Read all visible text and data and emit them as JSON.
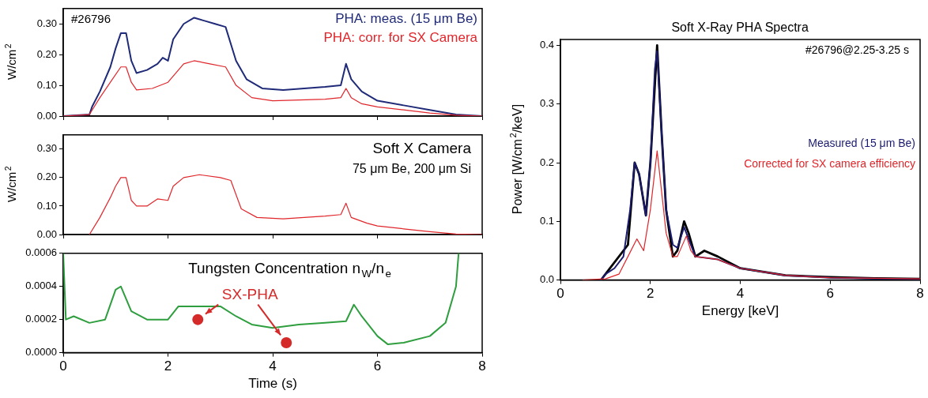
{
  "chart_data": [
    {
      "type": "line",
      "ylabel": "W/cm$^{2}$",
      "xlim": [
        0,
        8
      ],
      "ylim": [
        0,
        0.35
      ],
      "xticks": [
        0,
        2,
        4,
        6,
        8
      ],
      "yticks": [
        {
          "value": 0,
          "label": "0.00"
        },
        {
          "value": 0.1,
          "label": "0.10"
        },
        {
          "value": 0.2,
          "label": "0.20"
        },
        {
          "value": 0.3,
          "label": "0.30"
        }
      ],
      "tick_labels": "y",
      "grid": false,
      "legend": "top right",
      "annotations": [
        "#26796"
      ],
      "series": [
        {
          "name": "PHA: meas. (15 μm Be)",
          "color": "#1f2a78",
          "x": [
            0,
            0.5,
            0.55,
            0.7,
            0.9,
            1.0,
            1.1,
            1.2,
            1.3,
            1.4,
            1.6,
            1.8,
            1.9,
            2.0,
            2.1,
            2.3,
            2.5,
            2.7,
            2.9,
            3.1,
            3.3,
            3.5,
            3.8,
            4.2,
            4.6,
            5.0,
            5.3,
            5.4,
            5.5,
            5.7,
            6.0,
            6.5,
            7.0,
            7.5,
            8
          ],
          "values": [
            0,
            0.005,
            0.03,
            0.08,
            0.16,
            0.22,
            0.27,
            0.27,
            0.18,
            0.14,
            0.15,
            0.17,
            0.19,
            0.18,
            0.25,
            0.3,
            0.32,
            0.31,
            0.3,
            0.29,
            0.18,
            0.12,
            0.09,
            0.085,
            0.09,
            0.095,
            0.1,
            0.17,
            0.12,
            0.08,
            0.05,
            0.035,
            0.02,
            0.005,
            0
          ]
        },
        {
          "name": "PHA: corr. for SX Camera",
          "color": "#e0262b",
          "x": [
            0,
            0.5,
            0.7,
            0.9,
            1.1,
            1.2,
            1.3,
            1.4,
            1.7,
            2.0,
            2.3,
            2.5,
            2.8,
            3.1,
            3.3,
            3.6,
            4.0,
            5.0,
            5.3,
            5.4,
            5.5,
            5.7,
            6.0,
            6.5,
            7.0,
            7.5,
            8
          ],
          "values": [
            0,
            0.005,
            0.06,
            0.11,
            0.16,
            0.16,
            0.11,
            0.085,
            0.09,
            0.11,
            0.17,
            0.18,
            0.17,
            0.16,
            0.1,
            0.06,
            0.05,
            0.055,
            0.06,
            0.09,
            0.06,
            0.04,
            0.03,
            0.02,
            0.01,
            0.003,
            0
          ]
        }
      ]
    },
    {
      "type": "line",
      "ylabel": "W/cm$^{2}$",
      "xlim": [
        0,
        8
      ],
      "ylim": [
        0,
        0.35
      ],
      "xticks": [
        0,
        2,
        4,
        6,
        8
      ],
      "yticks": [
        {
          "value": 0,
          "label": "0.00"
        },
        {
          "value": 0.1,
          "label": "0.10"
        },
        {
          "value": 0.2,
          "label": "0.20"
        },
        {
          "value": 0.3,
          "label": "0.30"
        }
      ],
      "tick_labels": "y",
      "grid": false,
      "annotations": [
        "Soft X Camera",
        "75 μm Be, 200 μm Si"
      ],
      "series": [
        {
          "color": "#e0262b",
          "x": [
            0.5,
            0.7,
            0.9,
            1.0,
            1.1,
            1.2,
            1.3,
            1.4,
            1.6,
            1.8,
            2.0,
            2.1,
            2.3,
            2.6,
            3.0,
            3.2,
            3.4,
            3.7,
            4.2,
            5.0,
            5.3,
            5.4,
            5.5,
            5.8,
            6.0,
            6.5,
            7.0,
            7.5,
            8
          ],
          "values": [
            0,
            0.06,
            0.13,
            0.17,
            0.2,
            0.2,
            0.12,
            0.1,
            0.1,
            0.125,
            0.12,
            0.17,
            0.2,
            0.21,
            0.2,
            0.19,
            0.09,
            0.06,
            0.055,
            0.065,
            0.07,
            0.11,
            0.06,
            0.04,
            0.03,
            0.02,
            0.01,
            0.002,
            0
          ]
        }
      ]
    },
    {
      "type": "line",
      "title": "Tungsten Concentration n$_{W}$/n$_{e}$",
      "xlabel": "Time (s)",
      "xlim": [
        0,
        8
      ],
      "ylim": [
        0,
        0.0006
      ],
      "xticks": [
        0,
        2,
        4,
        6,
        8
      ],
      "yticks": [
        {
          "value": 0,
          "label": "0.0000"
        },
        {
          "value": 0.0002,
          "label": "0.0002"
        },
        {
          "value": 0.0004,
          "label": "0.0004"
        },
        {
          "value": 0.0006,
          "label": "0.0006"
        }
      ],
      "grid": false,
      "series": [
        {
          "color": "#2e9e3e",
          "x": [
            0,
            0.05,
            0.2,
            0.5,
            0.8,
            1.0,
            1.1,
            1.3,
            1.6,
            2.0,
            2.2,
            2.6,
            3.0,
            3.3,
            3.6,
            4.0,
            4.5,
            5.0,
            5.4,
            5.55,
            5.7,
            6.0,
            6.2,
            6.5,
            7.0,
            7.3,
            7.5,
            7.55
          ],
          "values": [
            0.0006,
            0.0002,
            0.00022,
            0.00018,
            0.0002,
            0.00038,
            0.0004,
            0.00025,
            0.0002,
            0.0002,
            0.00028,
            0.00028,
            0.00028,
            0.00022,
            0.00017,
            0.00015,
            0.00017,
            0.00018,
            0.00019,
            0.00029,
            0.00022,
            0.0001,
            5e-05,
            6e-05,
            0.0001,
            0.00018,
            0.0004,
            0.0006
          ]
        },
        {
          "name": "SX-PHA",
          "type": "scatter",
          "marker": "circle",
          "color": "#d42a2a",
          "x": [
            2.57,
            4.26
          ],
          "values": [
            0.0002,
            6e-05
          ]
        }
      ]
    },
    {
      "type": "line",
      "title": "Soft X-Ray PHA Spectra",
      "xlabel": "Energy [keV]",
      "ylabel": "Power [W/cm$^{2}$/keV]",
      "xlim": [
        0,
        8
      ],
      "ylim": [
        0,
        0.41
      ],
      "xticks": [
        0,
        2,
        4,
        6,
        8
      ],
      "yticks": [
        {
          "value": 0,
          "label": "0.0"
        },
        {
          "value": 0.1,
          "label": "0.1"
        },
        {
          "value": 0.2,
          "label": "0.2"
        },
        {
          "value": 0.3,
          "label": "0.3"
        },
        {
          "value": 0.4,
          "label": "0.4"
        }
      ],
      "grid": false,
      "legend": "right",
      "annotations": [
        "#26796@2.25-3.25 s"
      ],
      "series": [
        {
          "color": "#000000",
          "x": [
            0.9,
            1.0,
            1.5,
            1.65,
            1.75,
            1.9,
            2.0,
            2.15,
            2.25,
            2.35,
            2.5,
            2.6,
            2.75,
            2.85,
            3.0,
            3.2,
            3.5,
            4,
            5,
            6,
            7,
            8
          ],
          "values": [
            0,
            0.01,
            0.06,
            0.2,
            0.18,
            0.11,
            0.2,
            0.4,
            0.25,
            0.12,
            0.04,
            0.05,
            0.1,
            0.08,
            0.04,
            0.05,
            0.04,
            0.02,
            0.008,
            0.005,
            0.003,
            0.002
          ]
        },
        {
          "name": "Measured (15 μm Be)",
          "color": "#1a1a6e",
          "x": [
            0.9,
            1.0,
            1.2,
            1.4,
            1.55,
            1.65,
            1.75,
            1.9,
            2.0,
            2.1,
            2.15,
            2.25,
            2.35,
            2.5,
            2.6,
            2.75,
            2.85,
            3.0,
            3.5,
            4.0,
            5,
            6,
            8
          ],
          "values": [
            0,
            0.01,
            0.02,
            0.04,
            0.12,
            0.2,
            0.18,
            0.11,
            0.2,
            0.36,
            0.39,
            0.25,
            0.12,
            0.06,
            0.055,
            0.09,
            0.07,
            0.04,
            0.035,
            0.02,
            0.008,
            0.004,
            0.001
          ]
        },
        {
          "name": "Corrected for SX camera efficiency",
          "color": "#e0262b",
          "x": [
            0.5,
            1.0,
            1.3,
            1.5,
            1.7,
            1.85,
            2.0,
            2.15,
            2.25,
            2.35,
            2.5,
            2.6,
            2.8,
            2.9,
            3.0,
            3.5,
            4.0,
            5,
            6,
            8
          ],
          "values": [
            0,
            0.002,
            0.01,
            0.04,
            0.07,
            0.05,
            0.12,
            0.22,
            0.15,
            0.08,
            0.04,
            0.04,
            0.075,
            0.05,
            0.04,
            0.035,
            0.02,
            0.008,
            0.004,
            0.002
          ]
        }
      ]
    }
  ]
}
